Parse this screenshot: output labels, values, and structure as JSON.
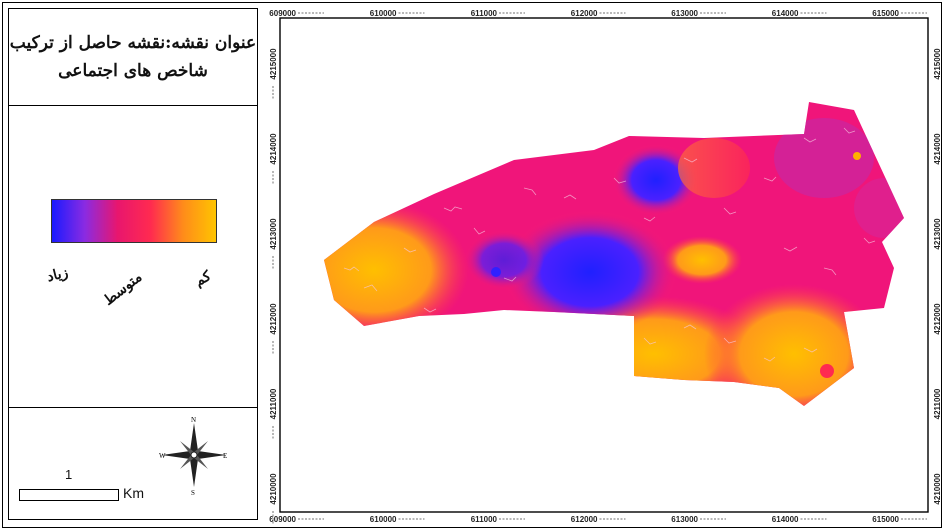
{
  "map": {
    "title_line1": "عنوان نقشه:نقشه حاصل از ترکیب",
    "title_line2": "شاخص های اجتماعی",
    "legend": {
      "high_label": "زیاد",
      "medium_label": "متوسط",
      "low_label": "کم",
      "gradient_colors": [
        "#1a1aff",
        "#8a2be2",
        "#e8166e",
        "#ff2a50",
        "#ff8c1a",
        "#ffc400"
      ]
    },
    "scale": {
      "value": "1",
      "unit": "Km"
    },
    "compass": {
      "n": "N",
      "s": "S",
      "e": "E",
      "w": "W"
    },
    "x_ticks": [
      "609000",
      "610000",
      "611000",
      "612000",
      "613000",
      "614000",
      "615000"
    ],
    "y_ticks": [
      "4215000",
      "4214000",
      "4213000",
      "4212000",
      "4211000",
      "4210000"
    ],
    "colors": {
      "high": "#1a1aff",
      "medium": "#e8166e",
      "low": "#ffc400"
    }
  }
}
